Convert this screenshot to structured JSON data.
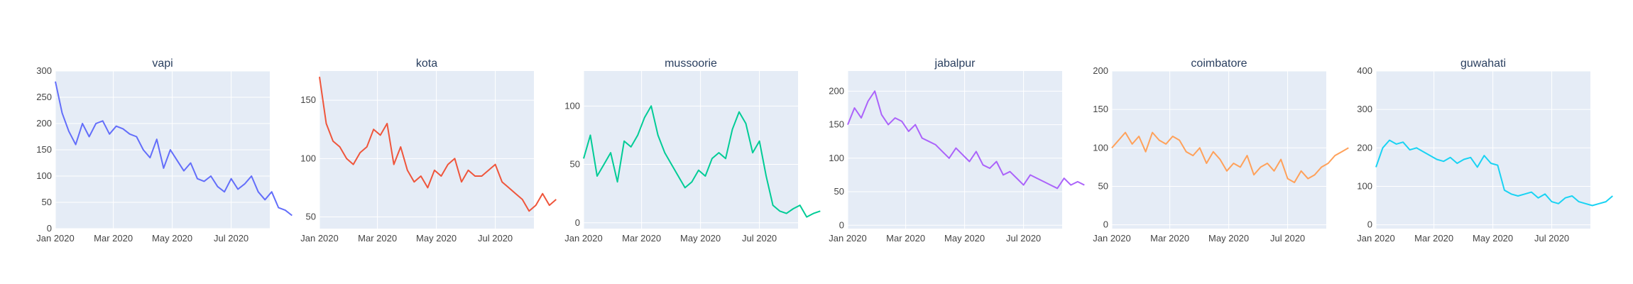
{
  "chart_data": {
    "type": "line",
    "layout": "small-multiples",
    "x_tick_labels": [
      "Jan 2020",
      "Mar 2020",
      "May 2020",
      "Jul 2020"
    ],
    "x_tick_dates": [
      "2020-01-01",
      "2020-03-01",
      "2020-05-01",
      "2020-07-01"
    ],
    "x_range": [
      "2020-01-01",
      "2020-08-10"
    ],
    "series_note": "values are approximate weekly samples starting 2020-01-01, read from the plot",
    "panels": [
      {
        "name": "vapi",
        "title": "vapi",
        "color": "#636efa",
        "ylim": [
          0,
          300
        ],
        "y_ticks": [
          0,
          50,
          100,
          150,
          200,
          250,
          300
        ],
        "values": [
          280,
          220,
          185,
          160,
          200,
          175,
          200,
          205,
          180,
          195,
          190,
          180,
          175,
          150,
          135,
          170,
          115,
          150,
          130,
          110,
          125,
          95,
          90,
          100,
          80,
          70,
          95,
          75,
          85,
          100,
          70,
          55,
          70,
          40,
          35,
          25
        ]
      },
      {
        "name": "kota",
        "title": "kota",
        "color": "#ef553b",
        "ylim": [
          40,
          175
        ],
        "y_ticks": [
          50,
          100,
          150
        ],
        "values": [
          170,
          130,
          115,
          110,
          100,
          95,
          105,
          110,
          125,
          120,
          130,
          95,
          110,
          90,
          80,
          85,
          75,
          90,
          85,
          95,
          100,
          80,
          90,
          85,
          85,
          90,
          95,
          80,
          75,
          70,
          65,
          55,
          60,
          70,
          60,
          65
        ]
      },
      {
        "name": "mussoorie",
        "title": "mussoorie",
        "color": "#00cc96",
        "ylim": [
          -5,
          130
        ],
        "y_ticks": [
          0,
          50,
          100
        ],
        "values": [
          55,
          75,
          40,
          50,
          60,
          35,
          70,
          65,
          75,
          90,
          100,
          75,
          60,
          50,
          40,
          30,
          35,
          45,
          40,
          55,
          60,
          55,
          80,
          95,
          85,
          60,
          70,
          40,
          15,
          10,
          8,
          12,
          15,
          5,
          8,
          10
        ]
      },
      {
        "name": "jabalpur",
        "title": "jabalpur",
        "color": "#ab63fa",
        "ylim": [
          -5,
          230
        ],
        "y_ticks": [
          0,
          50,
          100,
          150,
          200
        ],
        "values": [
          150,
          175,
          160,
          185,
          200,
          165,
          150,
          160,
          155,
          140,
          150,
          130,
          125,
          120,
          110,
          100,
          115,
          105,
          95,
          110,
          90,
          85,
          95,
          75,
          80,
          70,
          60,
          75,
          70,
          65,
          60,
          55,
          70,
          60,
          65,
          60
        ]
      },
      {
        "name": "coimbatore",
        "title": "coimbatore",
        "color": "#ffa15a",
        "ylim": [
          -5,
          200
        ],
        "y_ticks": [
          0,
          50,
          100,
          150,
          200
        ],
        "values": [
          100,
          110,
          120,
          105,
          115,
          95,
          120,
          110,
          105,
          115,
          110,
          95,
          90,
          100,
          80,
          95,
          85,
          70,
          80,
          75,
          90,
          65,
          75,
          80,
          70,
          85,
          60,
          55,
          70,
          60,
          65,
          75,
          80,
          90,
          95,
          100
        ]
      },
      {
        "name": "guwahati",
        "title": "guwahati",
        "color": "#19d3f3",
        "ylim": [
          -10,
          400
        ],
        "y_ticks": [
          0,
          100,
          200,
          300,
          400
        ],
        "values": [
          150,
          200,
          220,
          210,
          215,
          195,
          200,
          190,
          180,
          170,
          165,
          175,
          160,
          170,
          175,
          150,
          180,
          160,
          155,
          90,
          80,
          75,
          80,
          85,
          70,
          80,
          60,
          55,
          70,
          75,
          60,
          55,
          50,
          55,
          60,
          75
        ]
      }
    ]
  }
}
